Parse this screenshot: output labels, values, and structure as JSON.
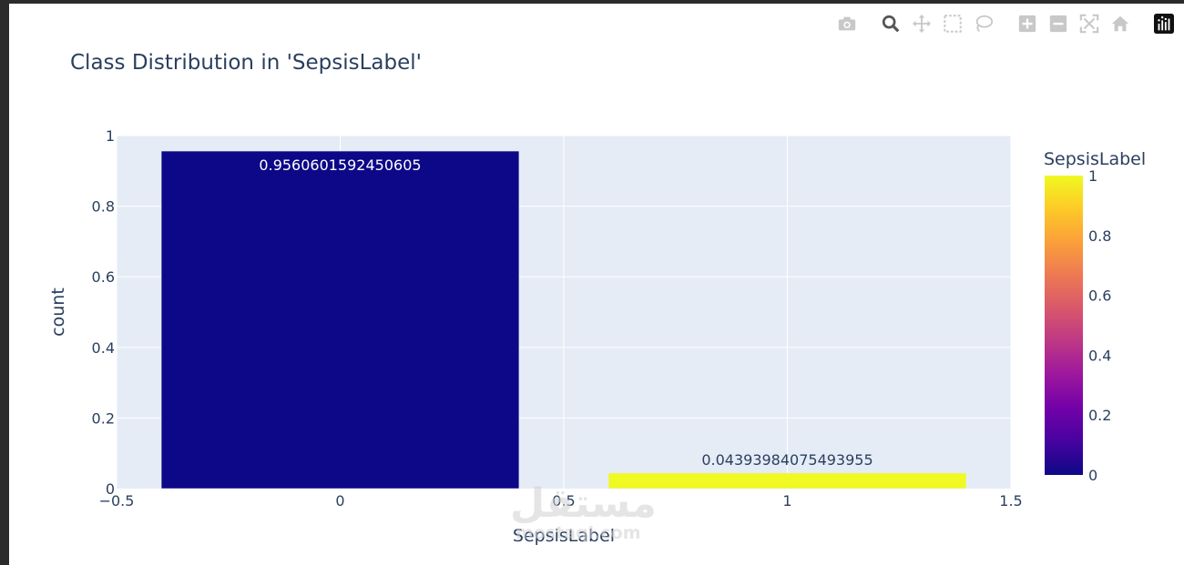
{
  "modebar": {
    "buttons": [
      "camera-icon",
      "zoom-icon",
      "pan-icon",
      "box-select-icon",
      "lasso-icon",
      "zoom-in-icon",
      "zoom-out-icon",
      "autoscale-icon",
      "reset-axes-icon",
      "plotly-logo-icon"
    ]
  },
  "watermark": {
    "arabic": "مستقل",
    "latin": "mostaql.com"
  },
  "chart_data": {
    "type": "bar",
    "title": "Class Distribution in 'SepsisLabel'",
    "xlabel": "SepsisLabel",
    "ylabel": "count",
    "xlim": [
      -0.5,
      1.5
    ],
    "ylim": [
      0,
      1
    ],
    "x_ticks": [
      -0.5,
      0,
      0.5,
      1,
      1.5
    ],
    "x_tick_labels": [
      "−0.5",
      "0",
      "0.5",
      "1",
      "1.5"
    ],
    "y_ticks": [
      0,
      0.2,
      0.4,
      0.6,
      0.8,
      1
    ],
    "y_tick_labels": [
      "0",
      "0.2",
      "0.4",
      "0.6",
      "0.8",
      "1"
    ],
    "grid": true,
    "bars": [
      {
        "x": 0,
        "value": 0.9560601592450605,
        "label": "0.9560601592450605",
        "color": "#0d0887",
        "label_color": "#ffffff"
      },
      {
        "x": 1,
        "value": 0.04393984075493955,
        "label": "0.04393984075493955",
        "color": "#f0f921",
        "label_color": "#2a3f5f"
      }
    ],
    "bar_width": 0.8,
    "colorbar": {
      "title": "SepsisLabel",
      "range": [
        0,
        1
      ],
      "ticks": [
        0,
        0.2,
        0.4,
        0.6,
        0.8,
        1
      ],
      "tick_labels": [
        "0",
        "0.2",
        "0.4",
        "0.6",
        "0.8",
        "1"
      ],
      "colorscale": [
        "#0d0887",
        "#46039f",
        "#7201a8",
        "#9c179e",
        "#bd3786",
        "#d8576b",
        "#ed7953",
        "#fb9f3a",
        "#fdca26",
        "#f0f921"
      ]
    },
    "plot_bg": "#e5ecf6"
  }
}
